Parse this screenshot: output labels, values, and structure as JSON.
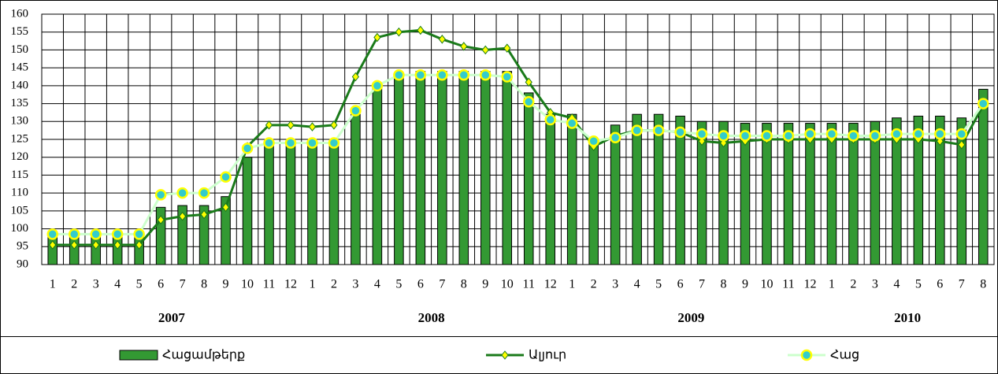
{
  "chart_data": {
    "type": "combo",
    "categories": [
      "1",
      "2",
      "3",
      "4",
      "5",
      "6",
      "7",
      "8",
      "9",
      "10",
      "11",
      "12",
      "1",
      "2",
      "3",
      "4",
      "5",
      "6",
      "7",
      "8",
      "9",
      "10",
      "11",
      "12",
      "1",
      "2",
      "3",
      "4",
      "5",
      "6",
      "7",
      "8",
      "9",
      "10",
      "11",
      "12",
      "1",
      "2",
      "3",
      "4",
      "5",
      "6",
      "7",
      "8"
    ],
    "years": [
      "2007",
      "2008",
      "2009",
      "2010"
    ],
    "ylim": [
      90,
      160
    ],
    "yticks": [
      90,
      95,
      100,
      105,
      110,
      115,
      120,
      125,
      130,
      135,
      140,
      145,
      150,
      155,
      160
    ],
    "grid": true,
    "legend": "bottom",
    "series": [
      {
        "name": "Հացամթերք",
        "type": "bar",
        "color": "#339933",
        "values": [
          98,
          98,
          98,
          98,
          98,
          106,
          106.5,
          106.5,
          109,
          120,
          124,
          124,
          124,
          124,
          132,
          140,
          143,
          144,
          144,
          144,
          144,
          144,
          138,
          132,
          132,
          125,
          129,
          132,
          132,
          131.5,
          130,
          130,
          129.5,
          129.5,
          129.5,
          129.5,
          129.5,
          129.5,
          130,
          131,
          131.5,
          131.5,
          131,
          139
        ]
      },
      {
        "name": "Ալյուր",
        "type": "line",
        "color": "#1a7a1a",
        "marker": "diamond",
        "marker_color": "#ffff00",
        "values": [
          95.5,
          95.5,
          95.5,
          95.5,
          95.5,
          102.5,
          103.5,
          104,
          106,
          123,
          129,
          129,
          128.5,
          129,
          142.5,
          153.5,
          155,
          155.5,
          153,
          151,
          150,
          150.5,
          141,
          132.5,
          131,
          123,
          126,
          127.5,
          127.5,
          127,
          124.5,
          124,
          124.5,
          125,
          125,
          125,
          125,
          125,
          125,
          125,
          125,
          124.5,
          123.5,
          134.5
        ]
      },
      {
        "name": "Հաց",
        "type": "line",
        "color": "#ccffcc",
        "marker": "circle",
        "marker_color": "#33cccc",
        "values": [
          98.5,
          98.5,
          98.5,
          98.5,
          98.5,
          109.5,
          110,
          110,
          114.5,
          122.5,
          124,
          124,
          124,
          124,
          133,
          140,
          143,
          143,
          143,
          143,
          143,
          142.5,
          135.5,
          130.5,
          129.5,
          124.5,
          125.5,
          127.5,
          127.5,
          127,
          126.5,
          126,
          126,
          126,
          126,
          126.5,
          126.5,
          126,
          126,
          126.5,
          126.5,
          126.5,
          126.5,
          135
        ]
      }
    ]
  }
}
